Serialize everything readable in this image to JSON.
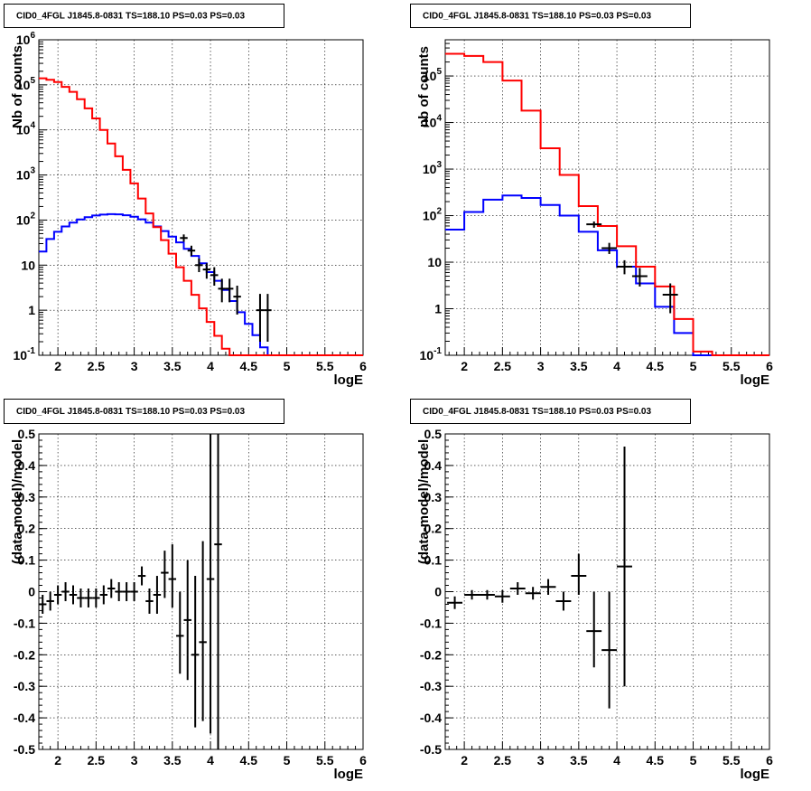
{
  "chart_data": [
    {
      "panel": "top-left",
      "type": "line",
      "title": "CID0_4FGL J1845.8-0831 TS=188.10 PS=0.03 PS=0.03",
      "xlabel": "logE",
      "ylabel": "Nb of counts",
      "xlim": [
        1.75,
        6
      ],
      "ylim": [
        0.1,
        1000000
      ],
      "yscale": "log",
      "grid": true,
      "x_ticks": [
        "2",
        "2.5",
        "3",
        "3.5",
        "4",
        "4.5",
        "5",
        "5.5",
        "6"
      ],
      "y_ticks": [
        "10^-1",
        "1",
        "10",
        "10^2",
        "10^3",
        "10^4",
        "10^5",
        "10^6"
      ],
      "colors": {
        "model_total": "#ff0000",
        "source": "#0000ff",
        "data": "#000000"
      },
      "bin_edges": [
        1.75,
        1.85,
        1.95,
        2.05,
        2.15,
        2.25,
        2.35,
        2.45,
        2.55,
        2.65,
        2.75,
        2.85,
        2.95,
        3.05,
        3.15,
        3.25,
        3.35,
        3.45,
        3.55,
        3.65,
        3.75,
        3.85,
        3.95,
        4.05,
        4.15,
        4.25,
        4.35,
        4.45,
        4.55,
        4.65,
        4.75,
        4.85,
        4.95,
        5.05,
        5.15,
        5.25,
        5.35,
        5.45,
        5.55,
        5.65,
        5.75,
        5.85,
        5.95,
        6.0
      ],
      "series": [
        {
          "values": [
            140000,
            130000,
            115000,
            90000,
            70000,
            48000,
            30000,
            18000,
            10000,
            5000,
            2600,
            1300,
            650,
            300,
            140,
            70,
            36,
            18,
            9,
            4.5,
            2.2,
            1.1,
            0.55,
            0.27,
            0.14,
            0.1,
            0.1,
            0.1,
            0.1,
            0.1,
            0.1,
            0.1,
            0.1,
            0.1,
            0.1,
            0.1,
            0.1,
            0.1,
            0.1,
            0.1,
            0.1,
            0.1,
            0.1
          ]
        },
        {
          "values": [
            20,
            38,
            55,
            72,
            88,
            103,
            116,
            126,
            132,
            135,
            134,
            128,
            118,
            104,
            88,
            72,
            57,
            43,
            32,
            23,
            16,
            11,
            7,
            4.5,
            2.8,
            1.6,
            0.9,
            0.5,
            0.28,
            0.15,
            0.1,
            0.1,
            0.1,
            0.1,
            0.1,
            0.1,
            0.1,
            0.1,
            0.1,
            0.1,
            0.1,
            0.1,
            0.1
          ]
        }
      ],
      "points": [
        {
          "x": 3.65,
          "y": 40,
          "ylo": 33,
          "yhi": 48,
          "xerr": 0.05
        },
        {
          "x": 3.75,
          "y": 21,
          "ylo": 16,
          "yhi": 27,
          "xerr": 0.05
        },
        {
          "x": 3.85,
          "y": 10,
          "ylo": 7,
          "yhi": 14,
          "xerr": 0.05
        },
        {
          "x": 3.95,
          "y": 8,
          "ylo": 5,
          "yhi": 11,
          "xerr": 0.05
        },
        {
          "x": 4.05,
          "y": 6,
          "ylo": 3.5,
          "yhi": 9,
          "xerr": 0.05
        },
        {
          "x": 4.15,
          "y": 3,
          "ylo": 1.5,
          "yhi": 5,
          "xerr": 0.05
        },
        {
          "x": 4.25,
          "y": 3,
          "ylo": 1.5,
          "yhi": 5,
          "xerr": 0.05
        },
        {
          "x": 4.35,
          "y": 2,
          "ylo": 0.8,
          "yhi": 3.5,
          "xerr": 0.05
        },
        {
          "x": 4.65,
          "y": 1,
          "ylo": 0.2,
          "yhi": 2.3,
          "xerr": 0.05
        },
        {
          "x": 4.75,
          "y": 1,
          "ylo": 0.2,
          "yhi": 2.3,
          "xerr": 0.05
        }
      ]
    },
    {
      "panel": "top-right",
      "type": "line",
      "title": "CID0_4FGL J1845.8-0831 TS=188.10 PS=0.03 PS=0.03",
      "xlabel": "logE",
      "ylabel": "nb of counts",
      "xlim": [
        1.75,
        6
      ],
      "ylim": [
        0.1,
        600000
      ],
      "yscale": "log",
      "grid": true,
      "x_ticks": [
        "2",
        "2.5",
        "3",
        "3.5",
        "4",
        "4.5",
        "5",
        "5.5",
        "6"
      ],
      "y_ticks": [
        "10^-1",
        "1",
        "10",
        "10^2",
        "10^3",
        "10^4",
        "10^5"
      ],
      "colors": {
        "model_total": "#ff0000",
        "source": "#0000ff",
        "data": "#000000"
      },
      "bin_edges": [
        1.75,
        2.0,
        2.25,
        2.5,
        2.75,
        3.0,
        3.25,
        3.5,
        3.75,
        4.0,
        4.25,
        4.5,
        4.75,
        5.0,
        5.25,
        5.5,
        5.75,
        6.0
      ],
      "series": [
        {
          "values": [
            300000,
            270000,
            200000,
            80000,
            18000,
            2800,
            750,
            160,
            60,
            22,
            8,
            3,
            0.6,
            0.12,
            0.1,
            0.1,
            0.1
          ]
        },
        {
          "values": [
            50,
            120,
            220,
            270,
            240,
            170,
            100,
            45,
            18,
            8,
            3.5,
            1.1,
            0.3,
            0.1,
            0.1,
            0.1,
            0.1
          ]
        }
      ],
      "points": [
        {
          "x": 3.7,
          "y": 65,
          "ylo": 55,
          "yhi": 75,
          "xerr": 0.1
        },
        {
          "x": 3.9,
          "y": 20,
          "ylo": 15,
          "yhi": 26,
          "xerr": 0.1
        },
        {
          "x": 4.1,
          "y": 8,
          "ylo": 5.5,
          "yhi": 11,
          "xerr": 0.1
        },
        {
          "x": 4.3,
          "y": 5,
          "ylo": 3,
          "yhi": 7.5,
          "xerr": 0.1
        },
        {
          "x": 4.7,
          "y": 2,
          "ylo": 0.8,
          "yhi": 3.5,
          "xerr": 0.1
        }
      ]
    },
    {
      "panel": "bottom-left",
      "type": "scatter",
      "title": "CID0_4FGL J1845.8-0831 TS=188.10 PS=0.03 PS=0.03",
      "xlabel": "logE",
      "ylabel": "(data-model)/model",
      "xlim": [
        1.75,
        6
      ],
      "ylim": [
        -0.5,
        0.5
      ],
      "yscale": "linear",
      "grid": true,
      "x_ticks": [
        "2",
        "2.5",
        "3",
        "3.5",
        "4",
        "4.5",
        "5",
        "5.5",
        "6"
      ],
      "y_ticks": [
        "-0.5",
        "-0.4",
        "-0.3",
        "-0.2",
        "-0.1",
        "0",
        "0.1",
        "0.2",
        "0.3",
        "0.4",
        "0.5"
      ],
      "points": [
        {
          "x": 1.8,
          "y": -0.04,
          "ylo": -0.07,
          "yhi": -0.01,
          "xerr": 0.05
        },
        {
          "x": 1.9,
          "y": -0.03,
          "ylo": -0.06,
          "yhi": 0.0,
          "xerr": 0.05
        },
        {
          "x": 2.0,
          "y": -0.01,
          "ylo": -0.04,
          "yhi": 0.02,
          "xerr": 0.05
        },
        {
          "x": 2.1,
          "y": 0.0,
          "ylo": -0.03,
          "yhi": 0.03,
          "xerr": 0.05
        },
        {
          "x": 2.2,
          "y": -0.01,
          "ylo": -0.04,
          "yhi": 0.02,
          "xerr": 0.05
        },
        {
          "x": 2.3,
          "y": -0.02,
          "ylo": -0.05,
          "yhi": 0.01,
          "xerr": 0.05
        },
        {
          "x": 2.4,
          "y": -0.02,
          "ylo": -0.05,
          "yhi": 0.01,
          "xerr": 0.05
        },
        {
          "x": 2.5,
          "y": -0.02,
          "ylo": -0.05,
          "yhi": 0.01,
          "xerr": 0.05
        },
        {
          "x": 2.6,
          "y": -0.01,
          "ylo": -0.04,
          "yhi": 0.02,
          "xerr": 0.05
        },
        {
          "x": 2.7,
          "y": 0.01,
          "ylo": -0.02,
          "yhi": 0.04,
          "xerr": 0.05
        },
        {
          "x": 2.8,
          "y": 0.0,
          "ylo": -0.03,
          "yhi": 0.03,
          "xerr": 0.05
        },
        {
          "x": 2.9,
          "y": 0.0,
          "ylo": -0.03,
          "yhi": 0.03,
          "xerr": 0.05
        },
        {
          "x": 3.0,
          "y": 0.0,
          "ylo": -0.03,
          "yhi": 0.03,
          "xerr": 0.05
        },
        {
          "x": 3.1,
          "y": 0.05,
          "ylo": 0.02,
          "yhi": 0.08,
          "xerr": 0.05
        },
        {
          "x": 3.2,
          "y": -0.03,
          "ylo": -0.07,
          "yhi": 0.01,
          "xerr": 0.05
        },
        {
          "x": 3.3,
          "y": -0.01,
          "ylo": -0.07,
          "yhi": 0.05,
          "xerr": 0.05
        },
        {
          "x": 3.4,
          "y": 0.06,
          "ylo": -0.02,
          "yhi": 0.13,
          "xerr": 0.05
        },
        {
          "x": 3.5,
          "y": 0.04,
          "ylo": -0.05,
          "yhi": 0.15,
          "xerr": 0.05
        },
        {
          "x": 3.6,
          "y": -0.14,
          "ylo": -0.26,
          "yhi": 0.0,
          "xerr": 0.05
        },
        {
          "x": 3.7,
          "y": -0.09,
          "ylo": -0.28,
          "yhi": 0.1,
          "xerr": 0.05
        },
        {
          "x": 3.8,
          "y": -0.2,
          "ylo": -0.43,
          "yhi": 0.05,
          "xerr": 0.05
        },
        {
          "x": 3.9,
          "y": -0.16,
          "ylo": -0.41,
          "yhi": 0.16,
          "xerr": 0.05
        },
        {
          "x": 4.0,
          "y": 0.04,
          "ylo": -0.45,
          "yhi": 0.5,
          "xerr": 0.05
        },
        {
          "x": 4.1,
          "y": 0.15,
          "ylo": -0.5,
          "yhi": 0.5,
          "xerr": 0.05
        }
      ]
    },
    {
      "panel": "bottom-right",
      "type": "scatter",
      "title": "CID0_4FGL J1845.8-0831 TS=188.10 PS=0.03 PS=0.03",
      "xlabel": "logE",
      "ylabel": "(data-model)/model",
      "xlim": [
        1.75,
        6
      ],
      "ylim": [
        -0.5,
        0.5
      ],
      "yscale": "linear",
      "grid": true,
      "x_ticks": [
        "2",
        "2.5",
        "3",
        "3.5",
        "4",
        "4.5",
        "5",
        "5.5",
        "6"
      ],
      "y_ticks": [
        "-0.5",
        "-0.4",
        "-0.3",
        "-0.2",
        "-0.1",
        "0",
        "0.1",
        "0.2",
        "0.3",
        "0.4",
        "0.5"
      ],
      "points": [
        {
          "x": 1.875,
          "y": -0.035,
          "ylo": -0.055,
          "yhi": -0.015,
          "xerr": 0.1
        },
        {
          "x": 2.1,
          "y": -0.01,
          "ylo": -0.025,
          "yhi": 0.005,
          "xerr": 0.1
        },
        {
          "x": 2.3,
          "y": -0.01,
          "ylo": -0.025,
          "yhi": 0.005,
          "xerr": 0.1
        },
        {
          "x": 2.5,
          "y": -0.015,
          "ylo": -0.035,
          "yhi": 0.005,
          "xerr": 0.1
        },
        {
          "x": 2.7,
          "y": 0.01,
          "ylo": -0.01,
          "yhi": 0.03,
          "xerr": 0.1
        },
        {
          "x": 2.9,
          "y": -0.005,
          "ylo": -0.025,
          "yhi": 0.015,
          "xerr": 0.1
        },
        {
          "x": 3.1,
          "y": 0.015,
          "ylo": -0.01,
          "yhi": 0.04,
          "xerr": 0.1
        },
        {
          "x": 3.3,
          "y": -0.03,
          "ylo": -0.06,
          "yhi": 0.0,
          "xerr": 0.1
        },
        {
          "x": 3.5,
          "y": 0.05,
          "ylo": -0.01,
          "yhi": 0.12,
          "xerr": 0.1
        },
        {
          "x": 3.7,
          "y": -0.125,
          "ylo": -0.24,
          "yhi": 0.0,
          "xerr": 0.1
        },
        {
          "x": 3.9,
          "y": -0.185,
          "ylo": -0.37,
          "yhi": 0.0,
          "xerr": 0.1
        },
        {
          "x": 4.1,
          "y": 0.08,
          "ylo": -0.3,
          "yhi": 0.46,
          "xerr": 0.1
        }
      ]
    }
  ]
}
